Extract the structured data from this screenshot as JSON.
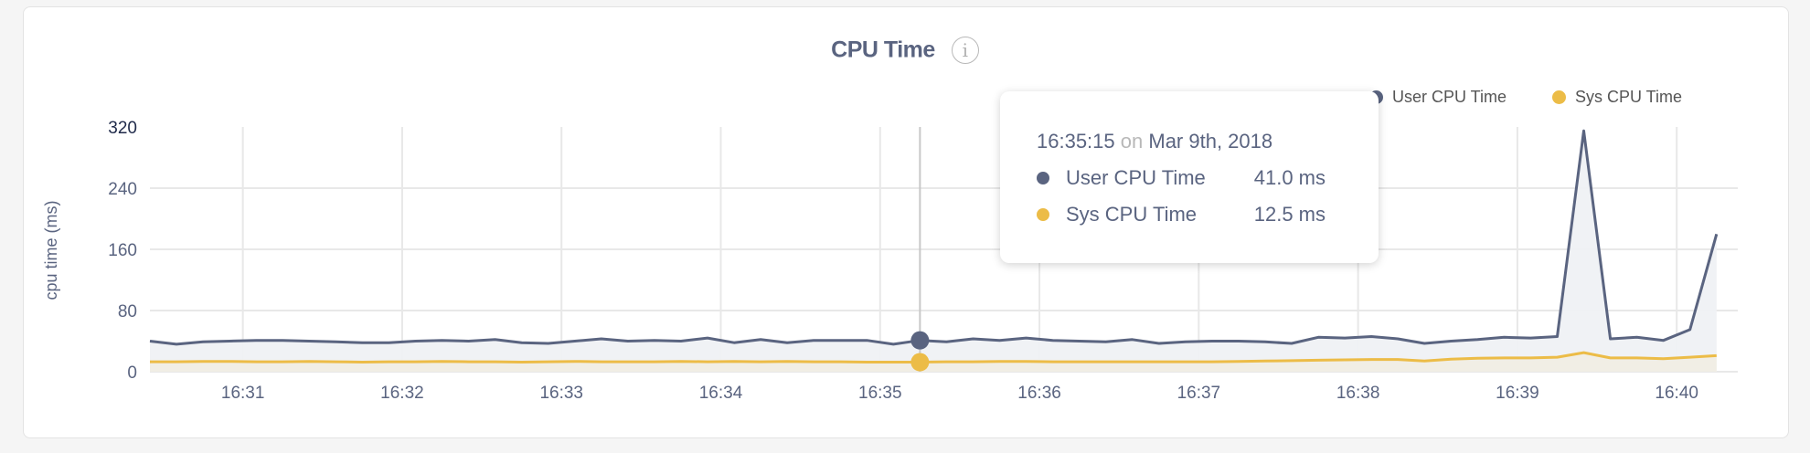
{
  "chart_data": {
    "type": "area",
    "title": "CPU Time",
    "ylabel": "cpu time (ms)",
    "xlabel": "",
    "ylim": [
      0,
      320
    ],
    "yticks": [
      "0",
      "80",
      "160",
      "240",
      "320"
    ],
    "xlim": [
      "16:30:25",
      "16:40:23"
    ],
    "xticks": [
      "16:31",
      "16:32",
      "16:33",
      "16:34",
      "16:35",
      "16:36",
      "16:37",
      "16:38",
      "16:39",
      "16:40"
    ],
    "grid": true,
    "legend_position": "top-right",
    "x_start": "16:30:25",
    "x_step_seconds": 10,
    "series": [
      {
        "name": "User CPU Time",
        "color": "#5a6480",
        "values": [
          40,
          36,
          39,
          40,
          41,
          41,
          40,
          39,
          38,
          38,
          40,
          41,
          40,
          42,
          38,
          37,
          40,
          43,
          40,
          41,
          40,
          44,
          38,
          42,
          38,
          41,
          41,
          41,
          36,
          41,
          39,
          43,
          41,
          44,
          41,
          40,
          39,
          42,
          37,
          39,
          40,
          40,
          39,
          37,
          45,
          44,
          46,
          43,
          37,
          40,
          42,
          45,
          44,
          46,
          315,
          43,
          45,
          41,
          55,
          180
        ]
      },
      {
        "name": "Sys CPU Time",
        "color": "#ecbc47",
        "values": [
          13,
          13,
          13.5,
          13.5,
          13,
          13,
          13.5,
          13,
          12.5,
          13,
          13,
          13.5,
          13,
          13,
          12.5,
          13,
          13.5,
          13,
          13,
          13,
          13.5,
          13,
          13.5,
          13,
          13.5,
          13,
          13,
          12.5,
          12.5,
          12.5,
          13,
          13,
          13.5,
          13.5,
          13,
          13,
          13,
          13,
          13,
          13,
          13,
          13.5,
          14,
          14.5,
          15,
          15.5,
          16,
          16,
          14,
          16.5,
          17.5,
          18,
          18,
          19,
          25,
          18,
          18,
          17,
          19,
          21
        ]
      }
    ]
  },
  "legend": {
    "items": [
      "User CPU Time",
      "Sys CPU Time"
    ]
  },
  "tooltip": {
    "time": "16:35:15",
    "on": "on",
    "date": "Mar 9th, 2018",
    "rows": [
      {
        "name": "User CPU Time",
        "value": "41.0 ms",
        "color": "#5a6480"
      },
      {
        "name": "Sys CPU Time",
        "value": "12.5 ms",
        "color": "#ecbc47"
      }
    ]
  },
  "hover_time": "16:35:15",
  "info_icon": "info-circle-icon"
}
